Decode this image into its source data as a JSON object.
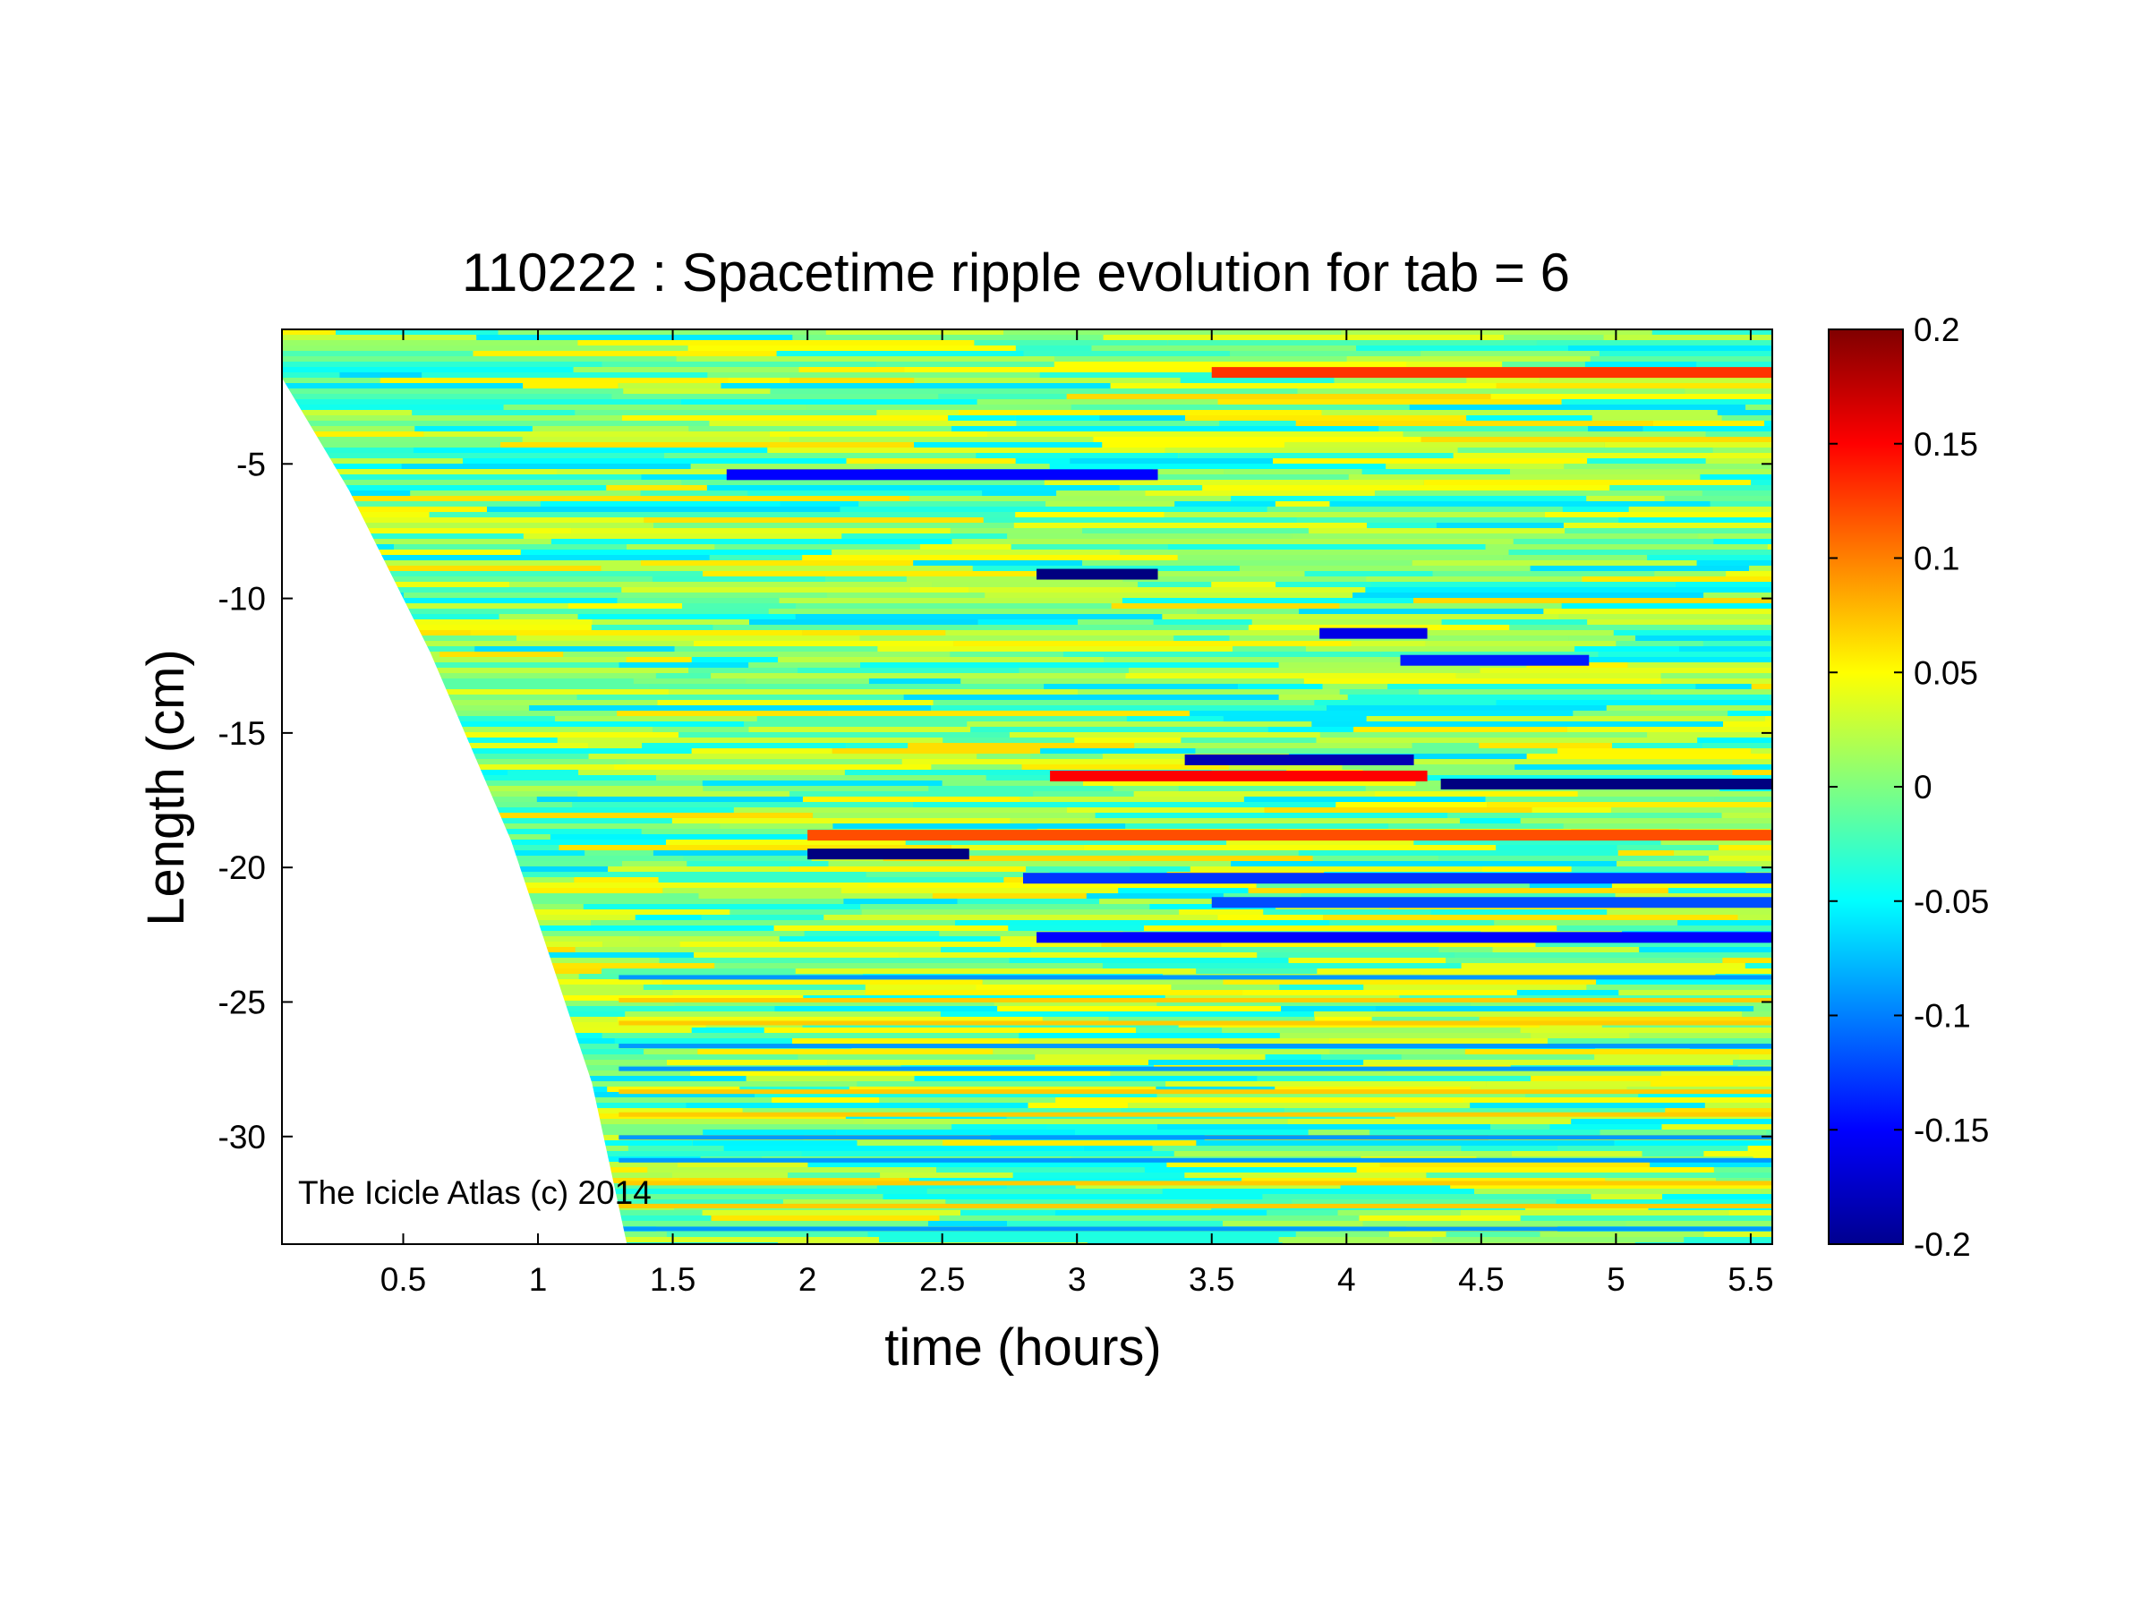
{
  "chart_data": {
    "type": "heatmap",
    "title": "110222 : Spacetime ripple evolution for tab = 6",
    "xlabel": "time (hours)",
    "ylabel": "Length (cm)",
    "xlim": [
      0.05,
      5.58
    ],
    "ylim": [
      -34,
      0
    ],
    "xticks": [
      0.5,
      1,
      1.5,
      2,
      2.5,
      3,
      3.5,
      4,
      4.5,
      5,
      5.5
    ],
    "xtick_labels": [
      "0.5",
      "1",
      "1.5",
      "2",
      "2.5",
      "3",
      "3.5",
      "4",
      "4.5",
      "5",
      "5.5"
    ],
    "yticks": [
      -5,
      -10,
      -15,
      -20,
      -25,
      -30
    ],
    "ytick_labels": [
      "-5",
      "-10",
      "-15",
      "-20",
      "-25",
      "-30"
    ],
    "colorbar": {
      "range": [
        -0.2,
        0.2
      ],
      "ticks": [
        0.2,
        0.15,
        0.1,
        0.05,
        0,
        -0.05,
        -0.1,
        -0.15,
        -0.2
      ],
      "tick_labels": [
        "0.2",
        "0.15",
        "0.1",
        "0.05",
        "0",
        "-0.05",
        "-0.1",
        "-0.15",
        "-0.2"
      ],
      "colormap": "jet"
    },
    "data_boundary": {
      "description_points": [
        [
          0.05,
          -1.8
        ],
        [
          0.3,
          -6
        ],
        [
          0.6,
          -12
        ],
        [
          0.9,
          -19
        ],
        [
          1.2,
          -28
        ],
        [
          1.33,
          -34
        ]
      ]
    },
    "features": [
      {
        "y": -16.9,
        "x_start": 4.35,
        "x_end": 5.58,
        "value": -0.2
      },
      {
        "y": -19.5,
        "x_start": 2.0,
        "x_end": 2.6,
        "value": -0.2
      },
      {
        "y": -9.1,
        "x_start": 2.85,
        "x_end": 3.3,
        "value": -0.2
      },
      {
        "y": -22.6,
        "x_start": 2.85,
        "x_end": 5.58,
        "value": -0.15
      },
      {
        "y": -16.0,
        "x_start": 3.4,
        "x_end": 4.25,
        "value": -0.18
      },
      {
        "y": -16.6,
        "x_start": 2.9,
        "x_end": 4.3,
        "value": 0.15
      },
      {
        "y": -18.8,
        "x_start": 2.0,
        "x_end": 5.58,
        "value": 0.12
      },
      {
        "y": -5.4,
        "x_start": 1.7,
        "x_end": 3.3,
        "value": -0.15
      },
      {
        "y": -11.3,
        "x_start": 3.9,
        "x_end": 4.3,
        "value": -0.16
      },
      {
        "y": -12.3,
        "x_start": 4.2,
        "x_end": 4.9,
        "value": -0.14
      },
      {
        "y": -1.6,
        "x_start": 3.5,
        "x_end": 5.58,
        "value": 0.13
      },
      {
        "y": -20.4,
        "x_start": 2.8,
        "x_end": 5.58,
        "value": -0.13
      },
      {
        "y": -21.3,
        "x_start": 3.5,
        "x_end": 5.58,
        "value": -0.12
      }
    ]
  },
  "watermark": "The Icicle Atlas (c) 2014",
  "colors": {
    "background": "#ffffff",
    "frame": "#000000",
    "field_base": "#9ff065"
  }
}
